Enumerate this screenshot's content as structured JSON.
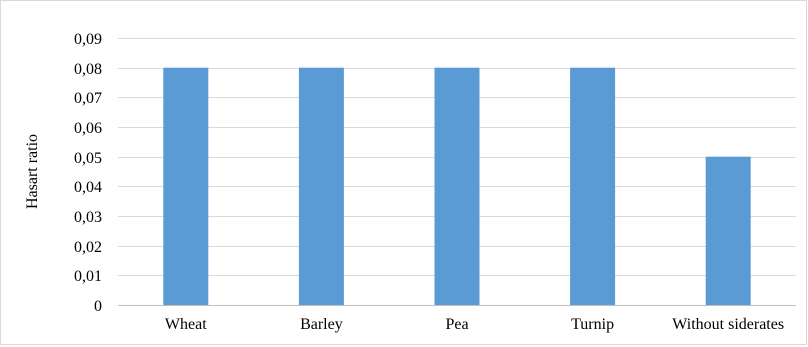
{
  "chart_data": {
    "type": "bar",
    "title": "",
    "xlabel": "",
    "ylabel": "Hasart ratio",
    "categories": [
      "Wheat",
      "Barley",
      "Pea",
      "Turnip",
      "Without siderates"
    ],
    "values": [
      0.08,
      0.08,
      0.08,
      0.08,
      0.05
    ],
    "ylim": [
      0,
      0.09
    ],
    "yticks": [
      0,
      0.01,
      0.02,
      0.03,
      0.04,
      0.05,
      0.06,
      0.07,
      0.08,
      0.09
    ],
    "ytick_labels": [
      "0",
      "0,01",
      "0,02",
      "0,03",
      "0,04",
      "0,05",
      "0,06",
      "0,07",
      "0,08",
      "0,09"
    ],
    "grid": true,
    "legend": "none",
    "colors": {
      "bar": "#5b9bd5",
      "grid": "#d9d9d9",
      "axis": "#bfbfbf",
      "text": "#000000"
    }
  }
}
